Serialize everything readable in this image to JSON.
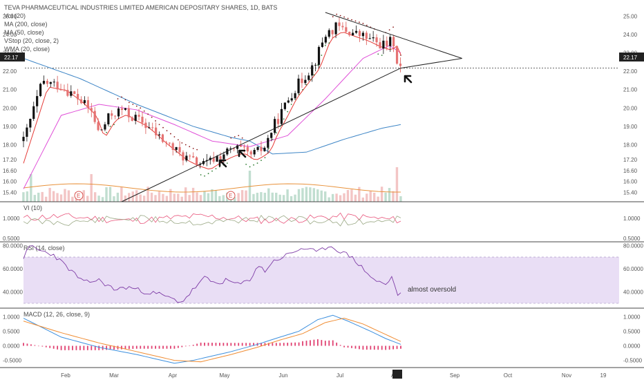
{
  "chart_data": [
    {
      "type": "candlestick",
      "title": "TEVA PHARMACEUTICAL INDUSTRIES LIMITED AMERICAN DEPOSITARY SHARES, 1D, BATS",
      "legend": [
        "Vol (20)",
        "MA (200, close)",
        "MA (50, close)",
        "VStop (20, close, 2)",
        "WMA (20, close)"
      ],
      "last_price": "22.17",
      "ylim": [
        14.9,
        25.5
      ],
      "y_ticks": [
        "25.00",
        "24.00",
        "23.00",
        "22.00",
        "21.00",
        "20.00",
        "19.00",
        "18.00",
        "17.20",
        "16.60",
        "16.00",
        "15.40"
      ],
      "x_ticks": [
        "Feb",
        "Mar",
        "Apr",
        "May",
        "Jun",
        "Jul",
        "Aug",
        "Sep",
        "Oct",
        "Nov",
        "19"
      ],
      "earnings_marker": "E",
      "close_path": [
        [
          0,
          18.2
        ],
        [
          5,
          21.4
        ],
        [
          10,
          21.2
        ],
        [
          14,
          20.6
        ],
        [
          18,
          19.8
        ],
        [
          20,
          18.6
        ],
        [
          23,
          19.6
        ],
        [
          26,
          19.9
        ],
        [
          28,
          19.6
        ],
        [
          31,
          19.3
        ],
        [
          34,
          18.8
        ],
        [
          36,
          18.4
        ],
        [
          39,
          17.9
        ],
        [
          42,
          17.4
        ],
        [
          45,
          17.1
        ],
        [
          48,
          16.9
        ],
        [
          51,
          17.3
        ],
        [
          54,
          17.6
        ],
        [
          57,
          17.8
        ],
        [
          60,
          17.4
        ],
        [
          62,
          17.6
        ],
        [
          64,
          17.9
        ],
        [
          66,
          18.9
        ],
        [
          68,
          19.6
        ],
        [
          71,
          20.8
        ],
        [
          74,
          21.6
        ],
        [
          77,
          22.4
        ],
        [
          80,
          24.0
        ],
        [
          83,
          24.4
        ],
        [
          87,
          24.1
        ],
        [
          90,
          23.9
        ],
        [
          93,
          23.6
        ],
        [
          96,
          23.4
        ],
        [
          98,
          23.7
        ],
        [
          99,
          22.6
        ],
        [
          100,
          22.17
        ]
      ],
      "trendline": [
        [
          15,
          14.9
        ],
        [
          100,
          22.17
        ]
      ],
      "wedge_upper": [
        [
          80,
          25.2
        ],
        [
          108,
          22.7
        ]
      ],
      "wedge_lower": [
        [
          100,
          22.17
        ],
        [
          108,
          22.7
        ]
      ]
    },
    {
      "type": "line",
      "title": "VI (10)",
      "y_ticks": [
        "1.0000",
        "0.5000"
      ],
      "ylim": [
        0.45,
        1.35
      ]
    },
    {
      "type": "line",
      "title": "RSI (14, close)",
      "y_ticks": [
        "80.0000",
        "60.0000",
        "40.0000"
      ],
      "ylim": [
        27,
        82
      ],
      "band": [
        30,
        70
      ],
      "values": [
        [
          0,
          70
        ],
        [
          2,
          80
        ],
        [
          4,
          76
        ],
        [
          8,
          72
        ],
        [
          12,
          60
        ],
        [
          16,
          48
        ],
        [
          20,
          50
        ],
        [
          24,
          42
        ],
        [
          28,
          44
        ],
        [
          32,
          40
        ],
        [
          36,
          38
        ],
        [
          40,
          33
        ],
        [
          42,
          31
        ],
        [
          45,
          42
        ],
        [
          48,
          52
        ],
        [
          51,
          47
        ],
        [
          54,
          50
        ],
        [
          57,
          46
        ],
        [
          60,
          50
        ],
        [
          62,
          63
        ],
        [
          64,
          58
        ],
        [
          66,
          66
        ],
        [
          70,
          72
        ],
        [
          74,
          78
        ],
        [
          78,
          74
        ],
        [
          81,
          80
        ],
        [
          84,
          75
        ],
        [
          87,
          70
        ],
        [
          90,
          60
        ],
        [
          93,
          50
        ],
        [
          96,
          46
        ],
        [
          98,
          54
        ],
        [
          99,
          35
        ],
        [
          100,
          40
        ]
      ],
      "annotation": "almost oversold"
    },
    {
      "type": "line",
      "title": "MACD (12, 26, close, 9)",
      "y_ticks": [
        "1.0000",
        "0.5000",
        "0.0000",
        "-0.5000"
      ],
      "ylim": [
        -0.7,
        1.2
      ],
      "series": [
        {
          "name": "",
          "color": "#3c8fde",
          "values": [
            [
              0,
              0.95
            ],
            [
              10,
              0.3
            ],
            [
              20,
              -0.05
            ],
            [
              30,
              -0.3
            ],
            [
              40,
              -0.6
            ],
            [
              45,
              -0.5
            ],
            [
              55,
              -0.2
            ],
            [
              62,
              0.05
            ],
            [
              68,
              0.3
            ],
            [
              73,
              0.5
            ],
            [
              78,
              0.9
            ],
            [
              82,
              1.05
            ],
            [
              86,
              0.85
            ],
            [
              92,
              0.5
            ],
            [
              96,
              0.25
            ],
            [
              100,
              0.05
            ]
          ]
        },
        {
          "name": "",
          "color": "#f08c32",
          "values": [
            [
              0,
              0.85
            ],
            [
              10,
              0.45
            ],
            [
              20,
              0.1
            ],
            [
              30,
              -0.2
            ],
            [
              40,
              -0.5
            ],
            [
              47,
              -0.55
            ],
            [
              55,
              -0.3
            ],
            [
              62,
              -0.05
            ],
            [
              68,
              0.2
            ],
            [
              74,
              0.42
            ],
            [
              80,
              0.8
            ],
            [
              85,
              0.95
            ],
            [
              90,
              0.75
            ],
            [
              95,
              0.45
            ],
            [
              100,
              0.15
            ]
          ]
        }
      ]
    }
  ]
}
